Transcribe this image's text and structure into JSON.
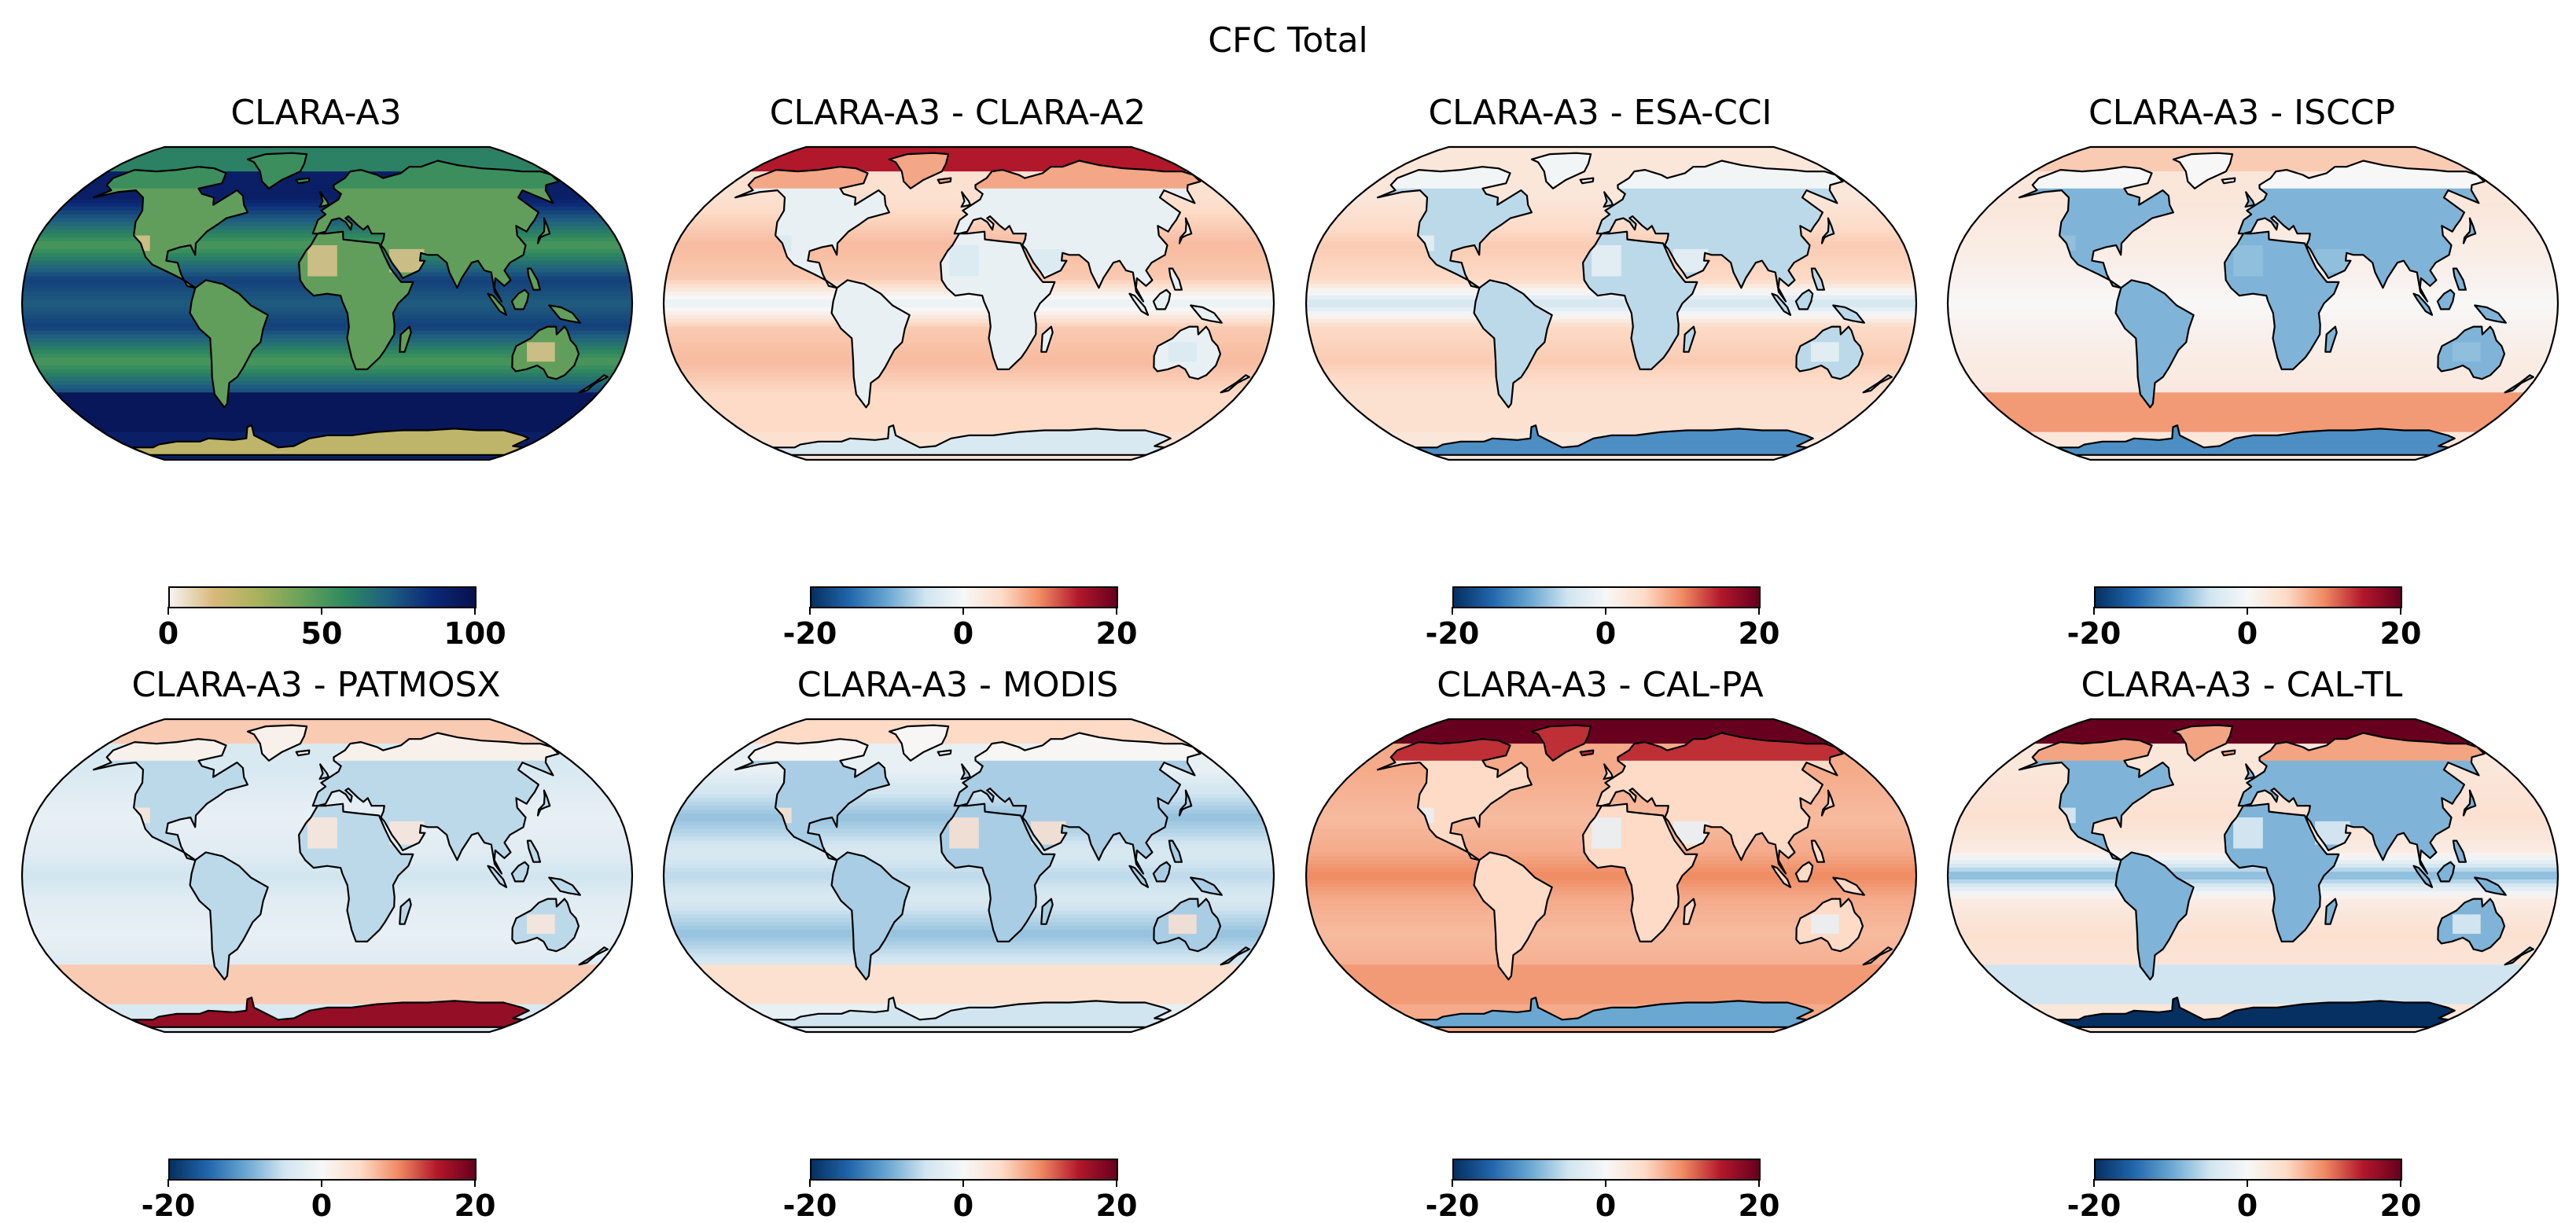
{
  "figure": {
    "suptitle": "CFC Total"
  },
  "colormaps": {
    "clouds": [
      "#f6f3f0",
      "#d8b97a",
      "#a9b25c",
      "#6aa25a",
      "#2f8a5e",
      "#1f5f7f",
      "#0c2a78",
      "#07104e"
    ],
    "diff": [
      "#053061",
      "#2166ac",
      "#6aa8d2",
      "#d1e5f0",
      "#f7f7f7",
      "#fddbc7",
      "#ef8a62",
      "#b2182b",
      "#67001f"
    ]
  },
  "chart_data": [
    {
      "type": "heatmap",
      "title": "CLARA-A3",
      "projection": "Robinson",
      "colormap": "clouds",
      "vmin": 0,
      "vmax": 100,
      "colorbar_ticks": [
        "0",
        "50",
        "100"
      ],
      "fields": {
        "ocean": 80,
        "land": 45,
        "desert": 12,
        "itcz": 72,
        "subtropic": 50,
        "storm": 92,
        "south_ocean": 96,
        "antarctica": 22,
        "arctic": 60
      }
    },
    {
      "type": "heatmap",
      "title": "CLARA-A3 - CLARA-A2",
      "projection": "Robinson",
      "colormap": "diff",
      "vmin": -20,
      "vmax": 20,
      "colorbar_ticks": [
        "-20",
        "0",
        "20"
      ],
      "fields": {
        "ocean": 6,
        "land": -2,
        "desert": -4,
        "itcz": -2,
        "subtropic": 7,
        "storm": 4,
        "south_ocean": 5,
        "antarctica": -4,
        "arctic": 15
      }
    },
    {
      "type": "heatmap",
      "title": "CLARA-A3 - ESA-CCI",
      "projection": "Robinson",
      "colormap": "diff",
      "vmin": -20,
      "vmax": 20,
      "colorbar_ticks": [
        "-20",
        "0",
        "20"
      ],
      "fields": {
        "ocean": 5,
        "land": -6,
        "desert": -2,
        "itcz": -5,
        "subtropic": 6,
        "storm": 3,
        "south_ocean": 4,
        "antarctica": -12,
        "arctic": 3
      }
    },
    {
      "type": "heatmap",
      "title": "CLARA-A3 - ISCCP",
      "projection": "Robinson",
      "colormap": "diff",
      "vmin": -20,
      "vmax": 20,
      "colorbar_ticks": [
        "-20",
        "0",
        "20"
      ],
      "fields": {
        "ocean": 1,
        "land": -9,
        "desert": -8,
        "itcz": 0,
        "subtropic": 2,
        "storm": 3,
        "south_ocean": 9,
        "antarctica": -12,
        "arctic": 6
      }
    },
    {
      "type": "heatmap",
      "title": "CLARA-A3 - PATMOSX",
      "projection": "Robinson",
      "colormap": "diff",
      "vmin": -20,
      "vmax": 20,
      "colorbar_ticks": [
        "-20",
        "0",
        "20"
      ],
      "fields": {
        "ocean": -3,
        "land": -6,
        "desert": 3,
        "itcz": -5,
        "subtropic": -2,
        "storm": -4,
        "south_ocean": 6,
        "antarctica": 17,
        "arctic": 6
      }
    },
    {
      "type": "heatmap",
      "title": "CLARA-A3 - MODIS",
      "projection": "Robinson",
      "colormap": "diff",
      "vmin": -20,
      "vmax": 20,
      "colorbar_ticks": [
        "-20",
        "0",
        "20"
      ],
      "fields": {
        "ocean": -4,
        "land": -7,
        "desert": 4,
        "itcz": -6,
        "subtropic": -8,
        "storm": -2,
        "south_ocean": 4,
        "antarctica": -5,
        "arctic": 5
      }
    },
    {
      "type": "heatmap",
      "title": "CLARA-A3 - CAL-PA",
      "projection": "Robinson",
      "colormap": "diff",
      "vmin": -20,
      "vmax": 20,
      "colorbar_ticks": [
        "-20",
        "0",
        "20"
      ],
      "fields": {
        "ocean": 8,
        "land": 5,
        "desert": -2,
        "itcz": 10,
        "subtropic": 7,
        "storm": 8,
        "south_ocean": 9,
        "antarctica": -10,
        "arctic": 20
      }
    },
    {
      "type": "heatmap",
      "title": "CLARA-A3 - CAL-TL",
      "projection": "Robinson",
      "colormap": "diff",
      "vmin": -20,
      "vmax": 20,
      "colorbar_ticks": [
        "-20",
        "0",
        "20"
      ],
      "fields": {
        "ocean": 2,
        "land": -9,
        "desert": -3,
        "itcz": -9,
        "subtropic": 4,
        "storm": 3,
        "south_ocean": -5,
        "antarctica": -20,
        "arctic": 20
      }
    }
  ]
}
